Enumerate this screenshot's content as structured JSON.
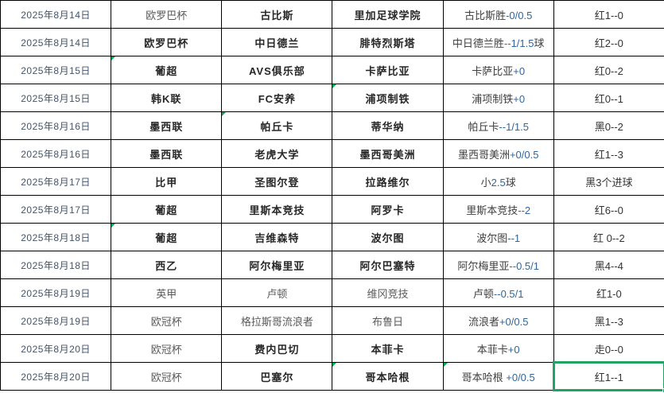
{
  "colors": {
    "border": "#000000",
    "date_text": "#44546A",
    "team_text_normal": "#595959",
    "team_text_bold": "#262626",
    "tip_text": "#404040",
    "tip_value_text": "#31659B",
    "result_text": "#333333",
    "marker_green": "#00B050",
    "selection_green": "#21A366"
  },
  "table": {
    "columns": [
      "date",
      "league",
      "home_team",
      "away_team",
      "tip",
      "result"
    ],
    "rows": [
      {
        "date": "2025年8月14日",
        "league": {
          "text": "欧罗巴杯",
          "bold": false,
          "marker": false
        },
        "home": {
          "text": "古比斯",
          "bold": true,
          "marker": false
        },
        "away": {
          "text": "里加足球学院",
          "bold": true,
          "marker": false
        },
        "tip": {
          "prefix": "古比斯胜",
          "value": "-0/0.5",
          "suffix": "",
          "marker": false
        },
        "result": {
          "text": "红1--0",
          "selected": false
        }
      },
      {
        "date": "2025年8月14日",
        "league": {
          "text": "欧罗巴杯",
          "bold": true,
          "marker": false
        },
        "home": {
          "text": "中日德兰",
          "bold": true,
          "marker": false
        },
        "away": {
          "text": "腓特烈斯塔",
          "bold": true,
          "marker": false
        },
        "tip": {
          "prefix": "中日德兰胜",
          "value": "--1/1.5",
          "suffix": "球",
          "marker": false
        },
        "result": {
          "text": "红2--0",
          "selected": false
        }
      },
      {
        "date": "2025年8月15日",
        "league": {
          "text": "葡超",
          "bold": true,
          "marker": true
        },
        "home": {
          "text": "AVS俱乐部",
          "bold": true,
          "marker": false
        },
        "away": {
          "text": "卡萨比亚",
          "bold": true,
          "marker": false
        },
        "tip": {
          "prefix": "卡萨比亚",
          "value": "+0",
          "suffix": "",
          "marker": false
        },
        "result": {
          "text": "红0--2",
          "selected": false
        }
      },
      {
        "date": "2025年8月15日",
        "league": {
          "text": "韩K联",
          "bold": true,
          "marker": false
        },
        "home": {
          "text": "FC安养",
          "bold": true,
          "marker": false
        },
        "away": {
          "text": "浦项制铁",
          "bold": true,
          "marker": true
        },
        "tip": {
          "prefix": "浦项制铁",
          "value": "+0",
          "suffix": "",
          "marker": false
        },
        "result": {
          "text": "红0--1",
          "selected": false
        }
      },
      {
        "date": "2025年8月16日",
        "league": {
          "text": "墨西联",
          "bold": true,
          "marker": false
        },
        "home": {
          "text": "帕丘卡",
          "bold": true,
          "marker": true
        },
        "away": {
          "text": "蒂华纳",
          "bold": true,
          "marker": false
        },
        "tip": {
          "prefix": "帕丘卡",
          "value": "--1/1.5",
          "suffix": "",
          "marker": false
        },
        "result": {
          "text": "黑0--2",
          "selected": false
        }
      },
      {
        "date": "2025年8月16日",
        "league": {
          "text": "墨西联",
          "bold": true,
          "marker": false
        },
        "home": {
          "text": "老虎大学",
          "bold": true,
          "marker": false
        },
        "away": {
          "text": "墨西哥美洲",
          "bold": true,
          "marker": false
        },
        "tip": {
          "prefix": "墨西哥美洲",
          "value": "+0/0.5",
          "suffix": "",
          "marker": false
        },
        "result": {
          "text": "红1--3",
          "selected": false
        }
      },
      {
        "date": "2025年8月17日",
        "league": {
          "text": "比甲",
          "bold": true,
          "marker": false
        },
        "home": {
          "text": "圣图尔登",
          "bold": true,
          "marker": false
        },
        "away": {
          "text": "拉路维尔",
          "bold": true,
          "marker": false
        },
        "tip": {
          "prefix": "小",
          "value": "2.5",
          "suffix": "球",
          "marker": false
        },
        "result": {
          "text": "黑3个进球",
          "selected": false
        }
      },
      {
        "date": "2025年8月17日",
        "league": {
          "text": "葡超",
          "bold": true,
          "marker": false
        },
        "home": {
          "text": "里斯本竞技",
          "bold": true,
          "marker": false
        },
        "away": {
          "text": "阿罗卡",
          "bold": true,
          "marker": false
        },
        "tip": {
          "prefix": "里斯本竞技",
          "value": "--2",
          "suffix": "",
          "marker": false
        },
        "result": {
          "text": "红6--0",
          "selected": false
        }
      },
      {
        "date": "2025年8月18日",
        "league": {
          "text": "葡超",
          "bold": true,
          "marker": true
        },
        "home": {
          "text": "吉维森特",
          "bold": true,
          "marker": false
        },
        "away": {
          "text": "波尔图",
          "bold": true,
          "marker": false
        },
        "tip": {
          "prefix": "波尔图",
          "value": "--1",
          "suffix": "",
          "marker": false
        },
        "result": {
          "text": "红 0--2",
          "selected": false
        }
      },
      {
        "date": "2025年8月18日",
        "league": {
          "text": "西乙",
          "bold": true,
          "marker": false
        },
        "home": {
          "text": "阿尔梅里亚",
          "bold": true,
          "marker": false
        },
        "away": {
          "text": "阿尔巴塞特",
          "bold": true,
          "marker": false
        },
        "tip": {
          "prefix": "阿尔梅里亚",
          "value": "--0.5/1",
          "suffix": "",
          "marker": false
        },
        "result": {
          "text": "黑4--4",
          "selected": false
        }
      },
      {
        "date": "2025年8月19日",
        "league": {
          "text": "英甲",
          "bold": false,
          "marker": false
        },
        "home": {
          "text": "卢顿",
          "bold": false,
          "marker": false
        },
        "away": {
          "text": "维冈竞技",
          "bold": false,
          "marker": false
        },
        "tip": {
          "prefix": "卢顿",
          "value": "--0.5/1",
          "suffix": "",
          "marker": false
        },
        "result": {
          "text": "红1-0",
          "selected": false
        }
      },
      {
        "date": "2025年8月19日",
        "league": {
          "text": "欧冠杯",
          "bold": false,
          "marker": false
        },
        "home": {
          "text": "格拉斯哥流浪者",
          "bold": false,
          "marker": false
        },
        "away": {
          "text": "布鲁日",
          "bold": false,
          "marker": false
        },
        "tip": {
          "prefix": "流浪者",
          "value": "+0/0.5",
          "suffix": "",
          "marker": false
        },
        "result": {
          "text": "黑1--3",
          "selected": false
        }
      },
      {
        "date": "2025年8月20日",
        "league": {
          "text": "欧冠杯",
          "bold": false,
          "marker": false
        },
        "home": {
          "text": "费内巴切",
          "bold": true,
          "marker": false
        },
        "away": {
          "text": "本菲卡",
          "bold": true,
          "marker": false
        },
        "tip": {
          "prefix": "本菲卡",
          "value": "+0",
          "suffix": "",
          "marker": false
        },
        "result": {
          "text": "走0--0",
          "selected": false
        }
      },
      {
        "date": "2025年8月20日",
        "league": {
          "text": "欧冠杯",
          "bold": false,
          "marker": false
        },
        "home": {
          "text": "巴塞尔",
          "bold": true,
          "marker": false
        },
        "away": {
          "text": "哥本哈根",
          "bold": true,
          "marker": true
        },
        "tip": {
          "prefix": "哥本哈根 ",
          "value": "+0/0.5",
          "suffix": "",
          "marker": true
        },
        "result": {
          "text": "红1--1",
          "selected": true
        }
      }
    ]
  },
  "selection": {
    "row_index": 13,
    "column": "result"
  }
}
